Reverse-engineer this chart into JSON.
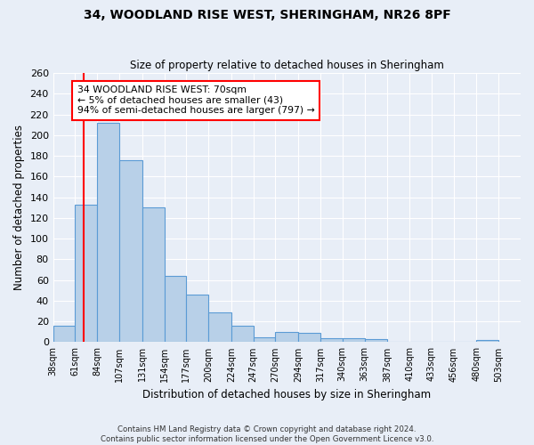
{
  "title": "34, WOODLAND RISE WEST, SHERINGHAM, NR26 8PF",
  "subtitle": "Size of property relative to detached houses in Sheringham",
  "xlabel": "Distribution of detached houses by size in Sheringham",
  "ylabel": "Number of detached properties",
  "bar_left_edges": [
    38,
    61,
    84,
    107,
    131,
    154,
    177,
    200,
    224,
    247,
    270,
    294,
    317,
    340,
    363,
    387,
    410,
    433,
    456,
    480
  ],
  "bar_widths": [
    23,
    23,
    23,
    24,
    23,
    23,
    23,
    24,
    23,
    23,
    24,
    23,
    23,
    23,
    24,
    23,
    23,
    23,
    24,
    23
  ],
  "bar_heights": [
    16,
    133,
    212,
    176,
    130,
    64,
    46,
    29,
    16,
    5,
    10,
    9,
    4,
    4,
    3,
    0,
    0,
    0,
    0,
    2
  ],
  "bar_color": "#b8d0e8",
  "bar_edge_color": "#5b9bd5",
  "tick_labels": [
    "38sqm",
    "61sqm",
    "84sqm",
    "107sqm",
    "131sqm",
    "154sqm",
    "177sqm",
    "200sqm",
    "224sqm",
    "247sqm",
    "270sqm",
    "294sqm",
    "317sqm",
    "340sqm",
    "363sqm",
    "387sqm",
    "410sqm",
    "433sqm",
    "456sqm",
    "480sqm",
    "503sqm"
  ],
  "ylim": [
    0,
    260
  ],
  "yticks": [
    0,
    20,
    40,
    60,
    80,
    100,
    120,
    140,
    160,
    180,
    200,
    220,
    240,
    260
  ],
  "red_line_x": 70,
  "annotation_line1": "34 WOODLAND RISE WEST: 70sqm",
  "annotation_line2": "← 5% of detached houses are smaller (43)",
  "annotation_line3": "94% of semi-detached houses are larger (797) →",
  "background_color": "#e8eef7",
  "plot_bg_color": "#e8eef7",
  "grid_color": "#ffffff",
  "footnote1": "Contains HM Land Registry data © Crown copyright and database right 2024.",
  "footnote2": "Contains public sector information licensed under the Open Government Licence v3.0."
}
